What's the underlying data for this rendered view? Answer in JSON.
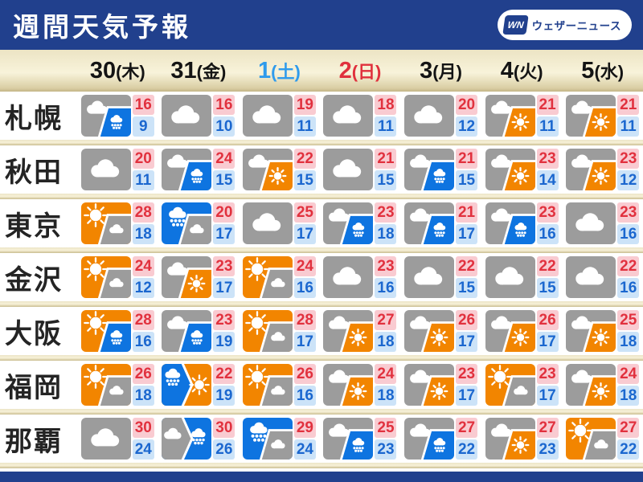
{
  "header": {
    "title": "週間天気予報",
    "logo_mark": "WN",
    "logo_text": "ウェザーニュース"
  },
  "colors": {
    "navy": "#21408d",
    "saturday_blue": "#2f9bec",
    "sunday_red": "#e0303c",
    "icon_gray": "#9c9c9c",
    "icon_blue": "#0e74e0",
    "icon_orange": "#f28500",
    "high_bg": "#f9cbd1",
    "high_text": "#e1313e",
    "low_bg": "#cce3f8",
    "low_text": "#1b67cf"
  },
  "days": [
    {
      "day": "30",
      "week": "(木)",
      "tone": "default"
    },
    {
      "day": "31",
      "week": "(金)",
      "tone": "default"
    },
    {
      "day": "1",
      "week": "(土)",
      "tone": "saturday"
    },
    {
      "day": "2",
      "week": "(日)",
      "tone": "sunday"
    },
    {
      "day": "3",
      "week": "(月)",
      "tone": "default"
    },
    {
      "day": "4",
      "week": "(火)",
      "tone": "default"
    },
    {
      "day": "5",
      "week": "(水)",
      "tone": "default"
    }
  ],
  "cities": [
    {
      "name": "札幌",
      "forecast": [
        {
          "icon": "cloud_then_rain",
          "high": 16,
          "low": 9
        },
        {
          "icon": "cloudy",
          "high": 16,
          "low": 10
        },
        {
          "icon": "cloudy",
          "high": 19,
          "low": 11
        },
        {
          "icon": "cloudy",
          "high": 18,
          "low": 11
        },
        {
          "icon": "cloudy",
          "high": 20,
          "low": 12
        },
        {
          "icon": "cloud_then_sunny",
          "high": 21,
          "low": 11
        },
        {
          "icon": "cloud_then_sunny",
          "high": 21,
          "low": 11
        }
      ]
    },
    {
      "name": "秋田",
      "forecast": [
        {
          "icon": "cloudy",
          "high": 20,
          "low": 11
        },
        {
          "icon": "cloud_then_rain",
          "high": 24,
          "low": 15
        },
        {
          "icon": "cloud_then_sunny",
          "high": 22,
          "low": 15
        },
        {
          "icon": "cloudy",
          "high": 21,
          "low": 15
        },
        {
          "icon": "cloud_then_rain",
          "high": 21,
          "low": 15
        },
        {
          "icon": "cloud_then_sunny",
          "high": 23,
          "low": 14
        },
        {
          "icon": "cloud_then_sunny",
          "high": 23,
          "low": 12
        }
      ]
    },
    {
      "name": "東京",
      "forecast": [
        {
          "icon": "sunny_then_cloudy",
          "high": 28,
          "low": 18
        },
        {
          "icon": "rain_then_cloudy",
          "high": 20,
          "low": 17
        },
        {
          "icon": "cloudy",
          "high": 25,
          "low": 17
        },
        {
          "icon": "cloud_then_rain",
          "high": 23,
          "low": 18
        },
        {
          "icon": "cloud_then_rain",
          "high": 21,
          "low": 17
        },
        {
          "icon": "cloud_then_rain",
          "high": 23,
          "low": 16
        },
        {
          "icon": "cloudy",
          "high": 23,
          "low": 16
        }
      ]
    },
    {
      "name": "金沢",
      "forecast": [
        {
          "icon": "sunny_then_cloudy",
          "high": 24,
          "low": 12
        },
        {
          "icon": "cloud_then_sunny",
          "high": 23,
          "low": 17
        },
        {
          "icon": "sunny_then_cloudy",
          "high": 24,
          "low": 16
        },
        {
          "icon": "cloudy",
          "high": 23,
          "low": 16
        },
        {
          "icon": "cloudy",
          "high": 22,
          "low": 15
        },
        {
          "icon": "cloudy",
          "high": 22,
          "low": 15
        },
        {
          "icon": "cloudy",
          "high": 22,
          "low": 16
        }
      ]
    },
    {
      "name": "大阪",
      "forecast": [
        {
          "icon": "sunny_then_rain",
          "high": 28,
          "low": 16
        },
        {
          "icon": "cloud_then_rain",
          "high": 23,
          "low": 19
        },
        {
          "icon": "sunny_then_cloudy",
          "high": 28,
          "low": 17
        },
        {
          "icon": "cloud_then_sunny",
          "high": 27,
          "low": 18
        },
        {
          "icon": "cloud_then_sunny",
          "high": 26,
          "low": 17
        },
        {
          "icon": "cloud_then_sunny",
          "high": 26,
          "low": 17
        },
        {
          "icon": "cloud_then_sunny",
          "high": 25,
          "low": 18
        }
      ]
    },
    {
      "name": "福岡",
      "forecast": [
        {
          "icon": "sunny_then_cloudy",
          "high": 26,
          "low": 18
        },
        {
          "icon": "rain_then_sunny_arrow",
          "high": 22,
          "low": 19
        },
        {
          "icon": "sunny_then_cloudy",
          "high": 26,
          "low": 16
        },
        {
          "icon": "cloud_then_sunny",
          "high": 24,
          "low": 18
        },
        {
          "icon": "cloud_then_sunny",
          "high": 23,
          "low": 17
        },
        {
          "icon": "sunny_then_cloudy",
          "high": 23,
          "low": 17
        },
        {
          "icon": "cloud_then_sunny",
          "high": 24,
          "low": 18
        }
      ]
    },
    {
      "name": "那覇",
      "forecast": [
        {
          "icon": "cloudy",
          "high": 30,
          "low": 24
        },
        {
          "icon": "cloud_then_rain_arrow",
          "high": 30,
          "low": 26
        },
        {
          "icon": "rain_then_cloudy",
          "high": 29,
          "low": 24
        },
        {
          "icon": "cloud_then_rain",
          "high": 25,
          "low": 23
        },
        {
          "icon": "cloud_then_rain",
          "high": 27,
          "low": 22
        },
        {
          "icon": "cloud_then_sunny",
          "high": 27,
          "low": 23
        },
        {
          "icon": "sunny_then_cloudy",
          "high": 27,
          "low": 22
        }
      ]
    }
  ]
}
